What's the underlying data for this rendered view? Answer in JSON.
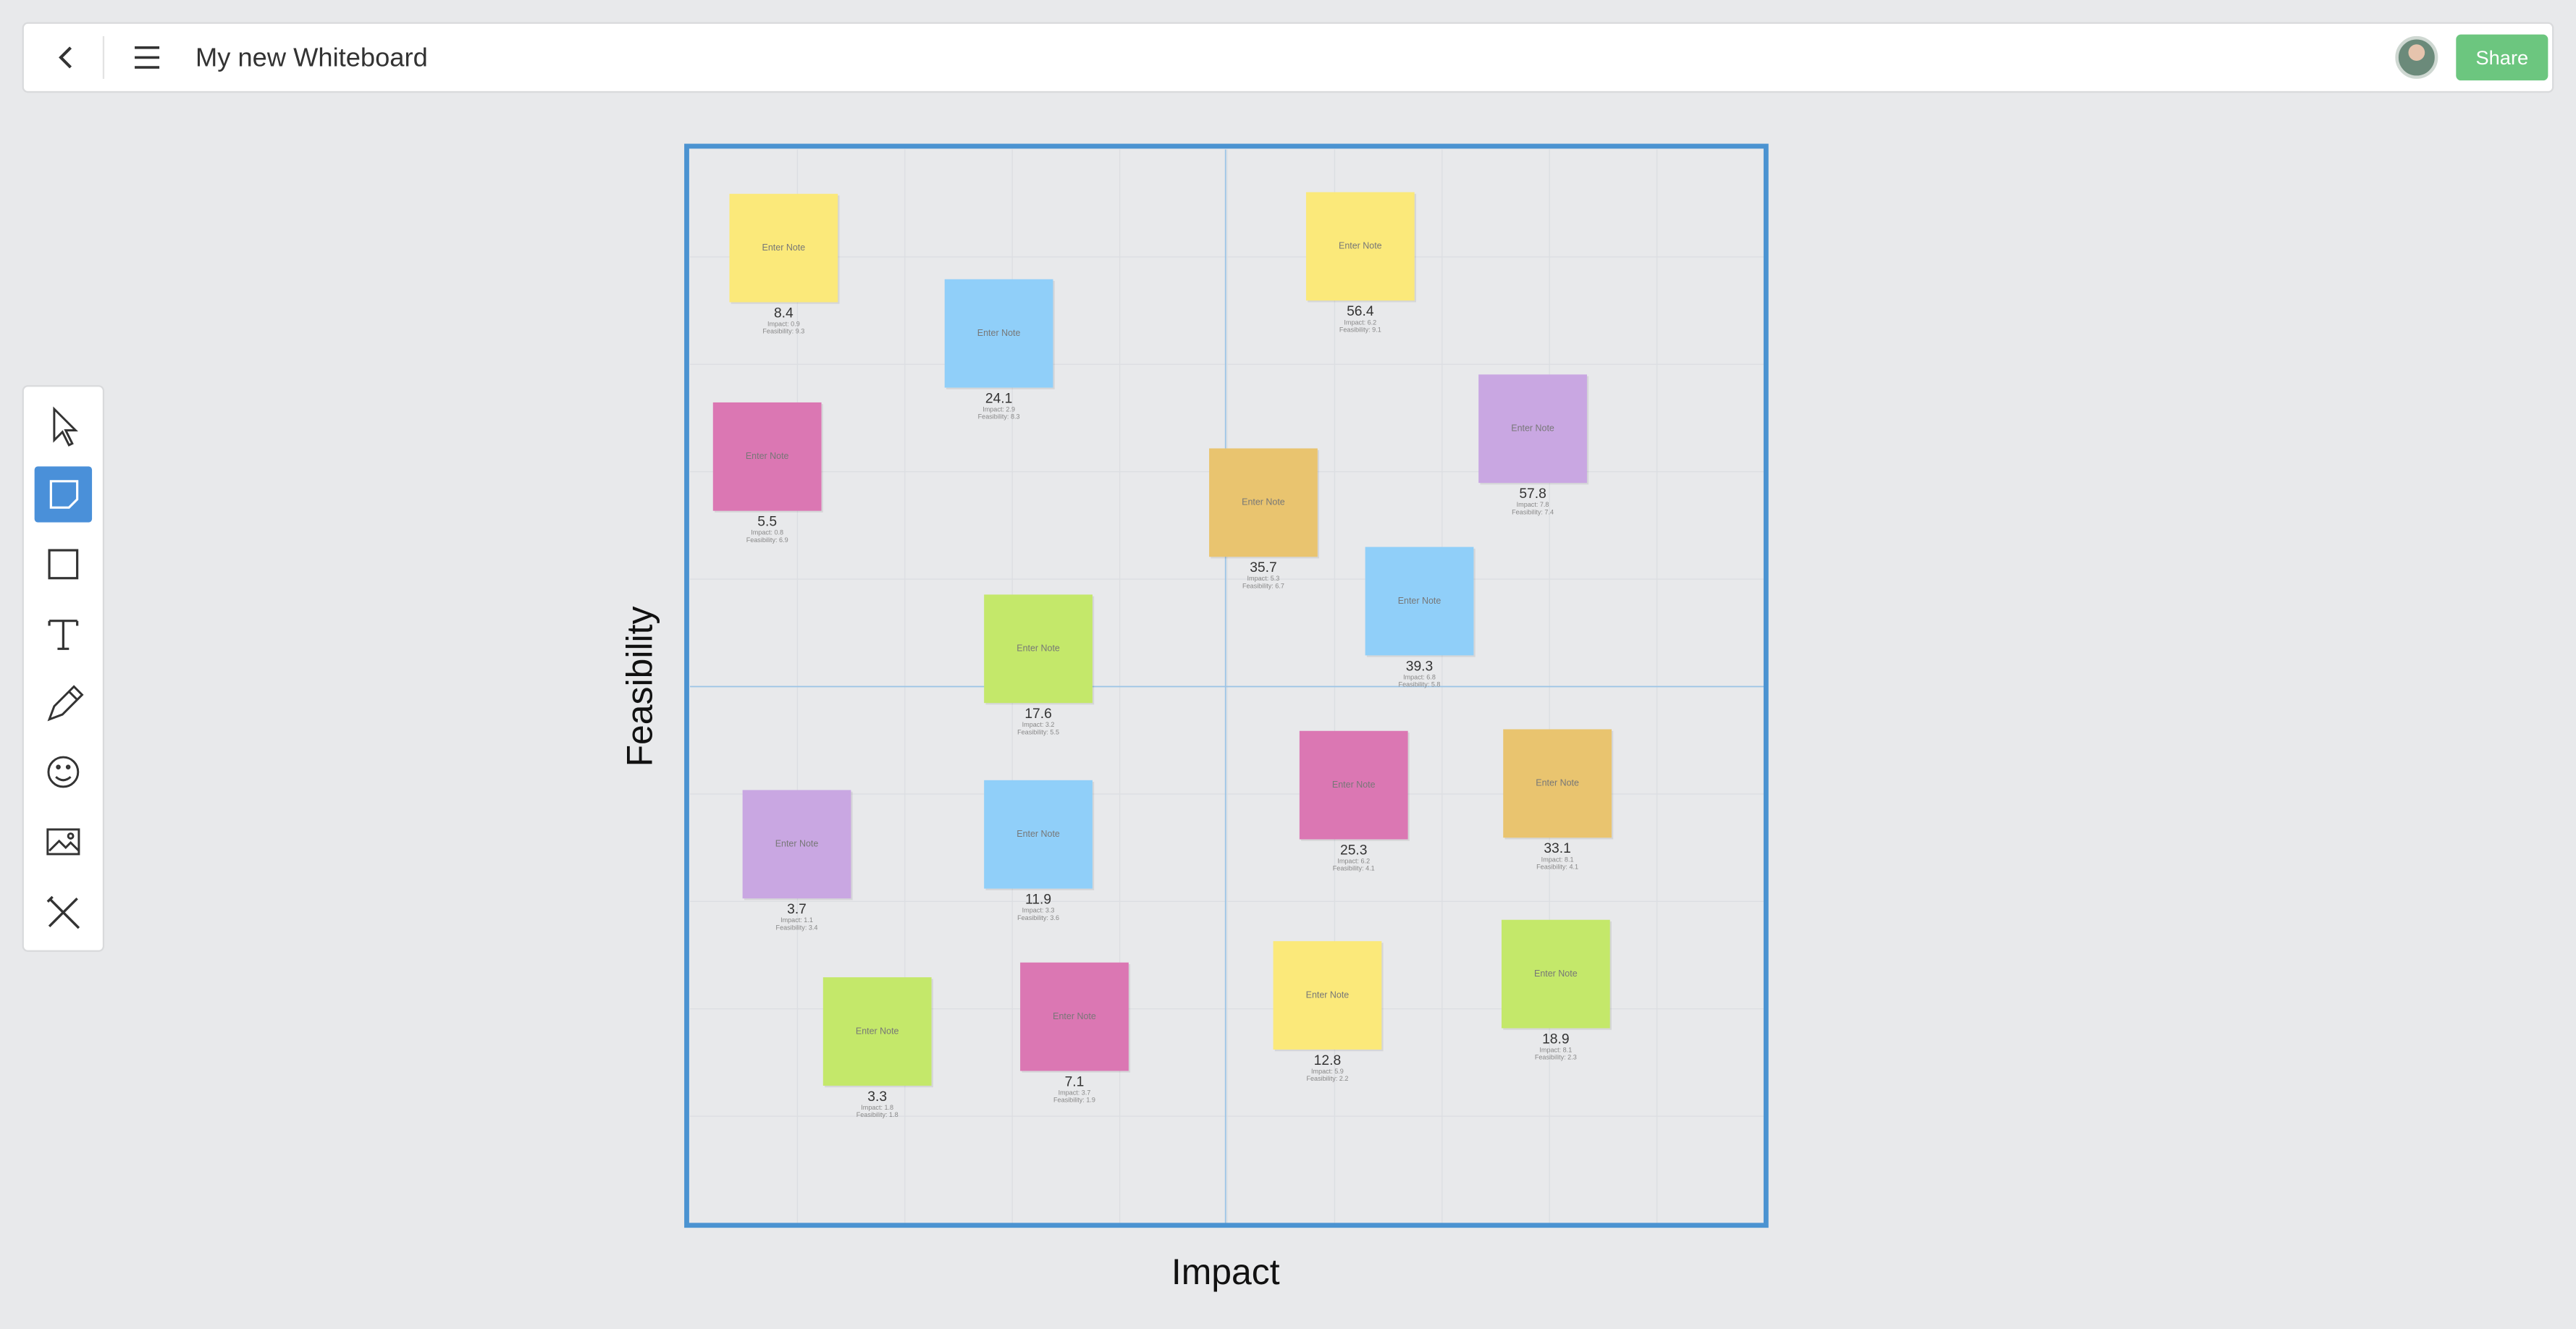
{
  "header": {
    "title": "My new Whiteboard",
    "share_button": "Share"
  },
  "board": {
    "x_axis_label": "Impact",
    "y_axis_label": "Feasibility",
    "notes": [
      {
        "text": "Enter Note",
        "score": 8.4,
        "impact": "Impact: 0.9",
        "feasibility": "Feasibility: 9.3"
      },
      {
        "text": "Enter Note",
        "score": 24.1,
        "impact": "Impact: 2.9",
        "feasibility": "Feasibility: 8.3"
      },
      {
        "text": "Enter Note",
        "score": 5.5,
        "impact": "Impact: 0.8",
        "feasibility": "Feasibility: 6.9"
      },
      {
        "text": "Enter Note",
        "score": 56.4,
        "impact": "Impact: 6.2",
        "feasibility": "Feasibility: 9.1"
      },
      {
        "text": "Enter Note",
        "score": 57.8,
        "impact": "Impact: 7.8",
        "feasibility": "Feasibility: 7.4"
      },
      {
        "text": "Enter Note",
        "score": 35.7,
        "impact": "Impact: 5.3",
        "feasibility": "Feasibility: 6.7"
      },
      {
        "text": "Enter Note",
        "score": 39.3,
        "impact": "Impact: 6.8",
        "feasibility": "Feasibility: 5.8"
      },
      {
        "text": "Enter Note",
        "score": 17.6,
        "impact": "Impact: 3.2",
        "feasibility": "Feasibility: 5.5"
      },
      {
        "text": "Enter Note",
        "score": 25.3,
        "impact": "Impact: 6.2",
        "feasibility": "Feasibility: 4.1"
      },
      {
        "text": "Enter Note",
        "score": 33.1,
        "impact": "Impact: 8.1",
        "feasibility": "Feasibility: 4.1"
      },
      {
        "text": "Enter Note",
        "score": 3.7,
        "impact": "Impact: 1.1",
        "feasibility": "Feasibility: 3.4"
      },
      {
        "text": "Enter Note",
        "score": 11.9,
        "impact": "Impact: 3.3",
        "feasibility": "Feasibility: 3.6"
      },
      {
        "text": "Enter Note",
        "score": 3.3,
        "impact": "Impact: 1.8",
        "feasibility": "Feasibility: 1.8"
      },
      {
        "text": "Enter Note",
        "score": 7.1,
        "impact": "Impact: 3.7",
        "feasibility": "Feasibility: 1.9"
      },
      {
        "text": "Enter Note",
        "score": 12.8,
        "impact": "Impact: 5.9",
        "feasibility": "Feasibility: 2.2"
      },
      {
        "text": "Enter Note",
        "score": 18.9,
        "impact": "Impact: 8.1",
        "feasibility": "Feasibility: 2.3"
      }
    ]
  }
}
